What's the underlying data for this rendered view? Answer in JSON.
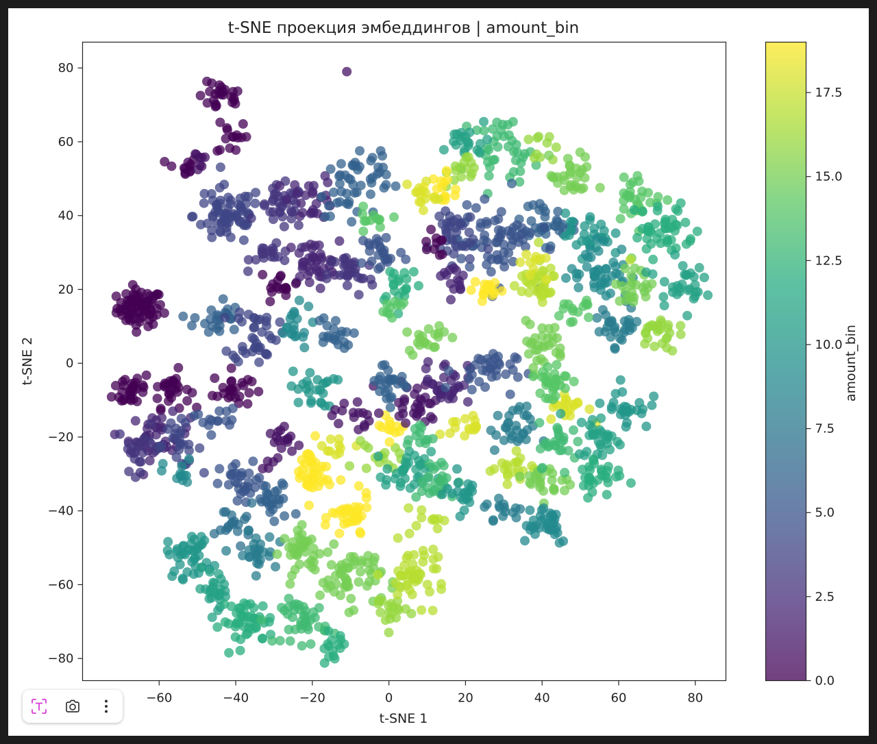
{
  "chart_data": {
    "type": "scatter",
    "title": "t-SNE проекция эмбеддингов | amount_bin",
    "xlabel": "t-SNE 1",
    "ylabel": "t-SNE 2",
    "xlim": [
      -80,
      88
    ],
    "ylim": [
      -86,
      87
    ],
    "xticks": [
      -60,
      -40,
      -20,
      0,
      20,
      40,
      60,
      80
    ],
    "yticks": [
      -80,
      -60,
      -40,
      -20,
      0,
      20,
      40,
      60,
      80
    ],
    "xtick_labels": [
      "−60",
      "−40",
      "−20",
      "0",
      "20",
      "40",
      "60",
      "80"
    ],
    "ytick_labels": [
      "−80",
      "−60",
      "−40",
      "−20",
      "0",
      "20",
      "40",
      "60",
      "80"
    ],
    "grid": false,
    "colormap": "viridis",
    "alpha": 0.75,
    "colorbar": {
      "label": "amount_bin",
      "range": [
        0,
        19
      ],
      "ticks": [
        0,
        2.5,
        5,
        7.5,
        10,
        12.5,
        15,
        17.5
      ],
      "tick_labels": [
        "0.0",
        "2.5",
        "5.0",
        "7.5",
        "10.0",
        "12.5",
        "15.0",
        "17.5"
      ]
    },
    "clusters": [
      {
        "cx": -65,
        "cy": 15,
        "sx": 3,
        "sy": 2.5,
        "n": 80,
        "v": 0
      },
      {
        "cx": -44,
        "cy": 72,
        "sx": 3,
        "sy": 2,
        "n": 25,
        "v": 0
      },
      {
        "cx": -41,
        "cy": 62,
        "sx": 2,
        "sy": 3,
        "n": 15,
        "v": 0
      },
      {
        "cx": -54,
        "cy": 53,
        "sx": 2,
        "sy": 1.5,
        "n": 12,
        "v": 0
      },
      {
        "cx": -50,
        "cy": 55,
        "sx": 1.5,
        "sy": 1.5,
        "n": 8,
        "v": 1
      },
      {
        "cx": -67,
        "cy": -7,
        "sx": 2.5,
        "sy": 2.5,
        "n": 30,
        "v": 0
      },
      {
        "cx": -57,
        "cy": -7,
        "sx": 2.5,
        "sy": 2.5,
        "n": 30,
        "v": 0
      },
      {
        "cx": -41,
        "cy": -7,
        "sx": 2.5,
        "sy": 2.5,
        "n": 25,
        "v": 0
      },
      {
        "cx": -60,
        "cy": -20,
        "sx": 4,
        "sy": 3,
        "n": 40,
        "v": 2
      },
      {
        "cx": -65,
        "cy": -23,
        "sx": 3,
        "sy": 3,
        "n": 25,
        "v": 3
      },
      {
        "cx": -55,
        "cy": -22,
        "sx": 3,
        "sy": 3,
        "n": 25,
        "v": 4
      },
      {
        "cx": -28,
        "cy": -23,
        "sx": 2.5,
        "sy": 3,
        "n": 20,
        "v": 1
      },
      {
        "cx": -42,
        "cy": 40,
        "sx": 4.5,
        "sy": 4,
        "n": 70,
        "v": 4
      },
      {
        "cx": -28,
        "cy": 42,
        "sx": 3,
        "sy": 3,
        "n": 35,
        "v": 3
      },
      {
        "cx": -30,
        "cy": 30,
        "sx": 3,
        "sy": 2,
        "n": 20,
        "v": 3
      },
      {
        "cx": -20,
        "cy": 45,
        "sx": 3,
        "sy": 3,
        "n": 25,
        "v": 2
      },
      {
        "cx": -10,
        "cy": 48,
        "sx": 4,
        "sy": 4,
        "n": 35,
        "v": 6
      },
      {
        "cx": -3,
        "cy": 53,
        "sx": 2,
        "sy": 3,
        "n": 15,
        "v": 6
      },
      {
        "cx": -5,
        "cy": 38,
        "sx": 2,
        "sy": 2,
        "n": 12,
        "v": 14
      },
      {
        "cx": -20,
        "cy": 27,
        "sx": 3.5,
        "sy": 3,
        "n": 40,
        "v": 2
      },
      {
        "cx": -10,
        "cy": 24,
        "sx": 3,
        "sy": 3,
        "n": 30,
        "v": 3
      },
      {
        "cx": -2,
        "cy": 30,
        "sx": 3,
        "sy": 3,
        "n": 25,
        "v": 5
      },
      {
        "cx": 3,
        "cy": 22,
        "sx": 3,
        "sy": 3,
        "n": 20,
        "v": 12
      },
      {
        "cx": -28,
        "cy": 20,
        "sx": 2.5,
        "sy": 2,
        "n": 15,
        "v": 0
      },
      {
        "cx": -45,
        "cy": 12,
        "sx": 3,
        "sy": 3,
        "n": 25,
        "v": 6
      },
      {
        "cx": -35,
        "cy": 8,
        "sx": 3,
        "sy": 4,
        "n": 40,
        "v": 4
      },
      {
        "cx": -25,
        "cy": 10,
        "sx": 2.5,
        "sy": 3,
        "n": 20,
        "v": 9
      },
      {
        "cx": -15,
        "cy": 7,
        "sx": 2.5,
        "sy": 3,
        "n": 20,
        "v": 6
      },
      {
        "cx": -20,
        "cy": -7,
        "sx": 3,
        "sy": 2.5,
        "n": 25,
        "v": 10
      },
      {
        "cx": -10,
        "cy": -14,
        "sx": 2.5,
        "sy": 2.5,
        "n": 15,
        "v": 1
      },
      {
        "cx": -45,
        "cy": -15,
        "sx": 3,
        "sy": 2,
        "n": 15,
        "v": 5
      },
      {
        "cx": -55,
        "cy": -30,
        "sx": 2,
        "sy": 2,
        "n": 12,
        "v": 9
      },
      {
        "cx": -38,
        "cy": -33,
        "sx": 3,
        "sy": 3,
        "n": 30,
        "v": 5
      },
      {
        "cx": -30,
        "cy": -38,
        "sx": 2.5,
        "sy": 3,
        "n": 25,
        "v": 6
      },
      {
        "cx": -40,
        "cy": -43,
        "sx": 2.5,
        "sy": 2.5,
        "n": 20,
        "v": 7
      },
      {
        "cx": -52,
        "cy": -52,
        "sx": 3,
        "sy": 3,
        "n": 40,
        "v": 10
      },
      {
        "cx": -35,
        "cy": -52,
        "sx": 2.5,
        "sy": 3,
        "n": 25,
        "v": 8
      },
      {
        "cx": -45,
        "cy": -61,
        "sx": 2.5,
        "sy": 2.5,
        "n": 25,
        "v": 11
      },
      {
        "cx": -37,
        "cy": -70,
        "sx": 3.5,
        "sy": 3,
        "n": 45,
        "v": 12
      },
      {
        "cx": -22,
        "cy": -70,
        "sx": 3,
        "sy": 3,
        "n": 40,
        "v": 13
      },
      {
        "cx": -15,
        "cy": -77,
        "sx": 2,
        "sy": 2,
        "n": 15,
        "v": 12
      },
      {
        "cx": -22,
        "cy": -51,
        "sx": 3,
        "sy": 3,
        "n": 40,
        "v": 15
      },
      {
        "cx": -10,
        "cy": -58,
        "sx": 4,
        "sy": 4,
        "n": 55,
        "v": 15
      },
      {
        "cx": 0,
        "cy": -67,
        "sx": 2.5,
        "sy": 2.5,
        "n": 20,
        "v": 16
      },
      {
        "cx": 7,
        "cy": -57,
        "sx": 4,
        "sy": 4,
        "n": 45,
        "v": 17
      },
      {
        "cx": -10,
        "cy": -42,
        "sx": 2.5,
        "sy": 3,
        "n": 35,
        "v": 19
      },
      {
        "cx": -20,
        "cy": -30,
        "sx": 2.5,
        "sy": 4,
        "n": 40,
        "v": 19
      },
      {
        "cx": -13,
        "cy": -22,
        "sx": 2,
        "sy": 2,
        "n": 10,
        "v": 18
      },
      {
        "cx": -3,
        "cy": -26,
        "sx": 3,
        "sy": 2,
        "n": 15,
        "v": 16
      },
      {
        "cx": 0,
        "cy": -18,
        "sx": 2,
        "sy": 1.5,
        "n": 12,
        "v": 19
      },
      {
        "cx": 8,
        "cy": -10,
        "sx": 4,
        "sy": 3,
        "n": 35,
        "v": 1
      },
      {
        "cx": 15,
        "cy": -5,
        "sx": 3,
        "sy": 3,
        "n": 30,
        "v": 2
      },
      {
        "cx": 0,
        "cy": -5,
        "sx": 3,
        "sy": 3,
        "n": 25,
        "v": 6
      },
      {
        "cx": 25,
        "cy": -2,
        "sx": 4,
        "sy": 3,
        "n": 35,
        "v": 5
      },
      {
        "cx": 32,
        "cy": -18,
        "sx": 3,
        "sy": 3,
        "n": 30,
        "v": 8
      },
      {
        "cx": 5,
        "cy": -30,
        "sx": 3,
        "sy": 3,
        "n": 35,
        "v": 11
      },
      {
        "cx": 12,
        "cy": -32,
        "sx": 3,
        "sy": 3,
        "n": 25,
        "v": 13
      },
      {
        "cx": 20,
        "cy": -35,
        "sx": 2.5,
        "sy": 3,
        "n": 20,
        "v": 10
      },
      {
        "cx": 10,
        "cy": -42,
        "sx": 2,
        "sy": 1.5,
        "n": 10,
        "v": 17
      },
      {
        "cx": 20,
        "cy": -17,
        "sx": 2,
        "sy": 1.5,
        "n": 15,
        "v": 18
      },
      {
        "cx": 8,
        "cy": -20,
        "sx": 2,
        "sy": 2,
        "n": 12,
        "v": 13
      },
      {
        "cx": 32,
        "cy": -28,
        "sx": 3,
        "sy": 2,
        "n": 20,
        "v": 17
      },
      {
        "cx": 42,
        "cy": -32,
        "sx": 3,
        "sy": 2.5,
        "n": 25,
        "v": 15
      },
      {
        "cx": 40,
        "cy": -43,
        "sx": 4,
        "sy": 3,
        "n": 35,
        "v": 9
      },
      {
        "cx": 30,
        "cy": -40,
        "sx": 2.5,
        "sy": 2,
        "n": 15,
        "v": 8
      },
      {
        "cx": 45,
        "cy": -22,
        "sx": 3,
        "sy": 3,
        "n": 25,
        "v": 13
      },
      {
        "cx": 47,
        "cy": -12,
        "sx": 2.5,
        "sy": 2,
        "n": 20,
        "v": 18
      },
      {
        "cx": 55,
        "cy": -20,
        "sx": 3,
        "sy": 3,
        "n": 30,
        "v": 11
      },
      {
        "cx": 55,
        "cy": -30,
        "sx": 3,
        "sy": 3,
        "n": 30,
        "v": 12
      },
      {
        "cx": 62,
        "cy": -12,
        "sx": 3,
        "sy": 3,
        "n": 25,
        "v": 10
      },
      {
        "cx": 40,
        "cy": 5,
        "sx": 3,
        "sy": 3,
        "n": 30,
        "v": 15
      },
      {
        "cx": 42,
        "cy": -5,
        "sx": 3,
        "sy": 3,
        "n": 30,
        "v": 14
      },
      {
        "cx": 10,
        "cy": 7,
        "sx": 2.5,
        "sy": 2,
        "n": 20,
        "v": 15
      },
      {
        "cx": 0,
        "cy": 15,
        "sx": 2,
        "sy": 2,
        "n": 10,
        "v": 14
      },
      {
        "cx": 30,
        "cy": 58,
        "sx": 4,
        "sy": 4,
        "n": 40,
        "v": 13
      },
      {
        "cx": 20,
        "cy": 60,
        "sx": 3,
        "sy": 2,
        "n": 20,
        "v": 11
      },
      {
        "cx": 20,
        "cy": 52,
        "sx": 2.5,
        "sy": 2.5,
        "n": 15,
        "v": 16
      },
      {
        "cx": 14,
        "cy": 47,
        "sx": 2,
        "sy": 2.5,
        "n": 15,
        "v": 19
      },
      {
        "cx": 8,
        "cy": 46,
        "sx": 2,
        "sy": 2.5,
        "n": 15,
        "v": 18
      },
      {
        "cx": 40,
        "cy": 58,
        "sx": 2,
        "sy": 2,
        "n": 10,
        "v": 16
      },
      {
        "cx": 40,
        "cy": 38,
        "sx": 4,
        "sy": 3,
        "n": 35,
        "v": 6
      },
      {
        "cx": 28,
        "cy": 33,
        "sx": 5,
        "sy": 5,
        "n": 65,
        "v": 5
      },
      {
        "cx": 16,
        "cy": 35,
        "sx": 3,
        "sy": 4,
        "n": 35,
        "v": 4
      },
      {
        "cx": 17,
        "cy": 23,
        "sx": 2.5,
        "sy": 2.5,
        "n": 15,
        "v": 2
      },
      {
        "cx": 12,
        "cy": 32,
        "sx": 1.5,
        "sy": 2,
        "n": 10,
        "v": 0
      },
      {
        "cx": 26,
        "cy": 20,
        "sx": 2,
        "sy": 1.5,
        "n": 15,
        "v": 19
      },
      {
        "cx": 38,
        "cy": 22,
        "sx": 3,
        "sy": 3,
        "n": 35,
        "v": 17
      },
      {
        "cx": 38,
        "cy": 26,
        "sx": 2,
        "sy": 2,
        "n": 10,
        "v": 18
      },
      {
        "cx": 48,
        "cy": 50,
        "sx": 3,
        "sy": 3,
        "n": 30,
        "v": 15
      },
      {
        "cx": 52,
        "cy": 35,
        "sx": 3,
        "sy": 3,
        "n": 30,
        "v": 10
      },
      {
        "cx": 55,
        "cy": 25,
        "sx": 4,
        "sy": 4,
        "n": 45,
        "v": 9
      },
      {
        "cx": 60,
        "cy": 10,
        "sx": 3,
        "sy": 3,
        "n": 30,
        "v": 8
      },
      {
        "cx": 65,
        "cy": 45,
        "sx": 3,
        "sy": 3,
        "n": 30,
        "v": 14
      },
      {
        "cx": 65,
        "cy": 22,
        "sx": 3,
        "sy": 3,
        "n": 25,
        "v": 15
      },
      {
        "cx": 72,
        "cy": 36,
        "sx": 4,
        "sy": 4,
        "n": 45,
        "v": 12
      },
      {
        "cx": 76,
        "cy": 22,
        "sx": 3,
        "sy": 3,
        "n": 30,
        "v": 11
      },
      {
        "cx": 70,
        "cy": 8,
        "sx": 2.5,
        "sy": 2.5,
        "n": 25,
        "v": 16
      },
      {
        "cx": 48,
        "cy": 15,
        "sx": 2.5,
        "sy": 2,
        "n": 15,
        "v": 14
      }
    ],
    "points": [
      {
        "x": -11,
        "y": 79,
        "v": 1
      },
      {
        "x": 63,
        "y": 28,
        "v": 17
      },
      {
        "x": -33,
        "y": 24,
        "v": 0
      }
    ]
  }
}
